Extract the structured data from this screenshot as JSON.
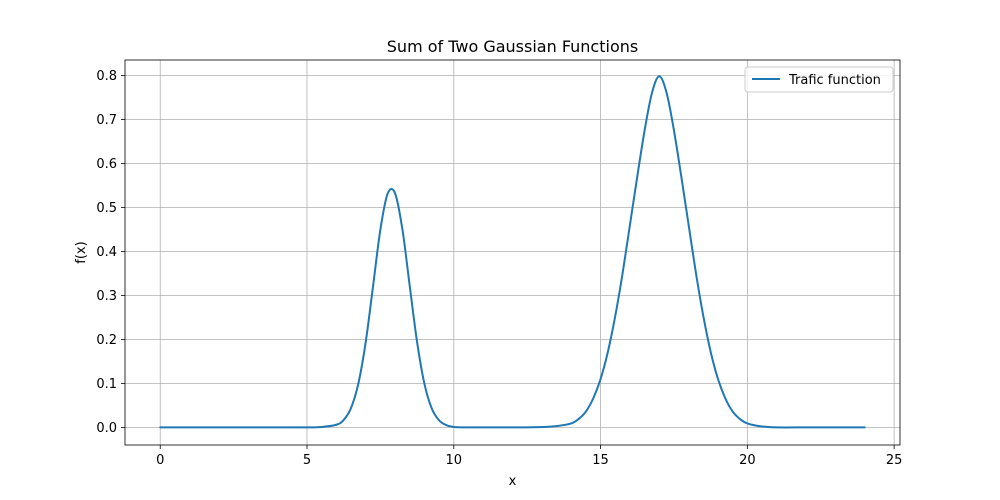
{
  "chart_data": {
    "type": "line",
    "title": "Sum of Two Gaussian Functions",
    "xlabel": "x",
    "ylabel": "f(x)",
    "xlim": [
      -1.2,
      25.2
    ],
    "ylim": [
      -0.04,
      0.835
    ],
    "xticks": [
      0,
      5,
      10,
      15,
      20,
      25
    ],
    "xtick_labels": [
      "0",
      "5",
      "10",
      "15",
      "20",
      "25"
    ],
    "yticks": [
      0.0,
      0.1,
      0.2,
      0.3,
      0.4,
      0.5,
      0.6,
      0.7,
      0.8
    ],
    "ytick_labels": [
      "0.0",
      "0.1",
      "0.2",
      "0.3",
      "0.4",
      "0.5",
      "0.6",
      "0.7",
      "0.8"
    ],
    "grid": true,
    "legend_position": "top-right",
    "series": [
      {
        "name": "Trafic function",
        "color": "#1f77b4",
        "x": [
          0,
          1,
          2,
          3,
          4,
          5,
          5.5,
          6,
          6.25,
          6.5,
          6.75,
          7,
          7.25,
          7.5,
          7.75,
          8,
          8.25,
          8.5,
          8.75,
          9,
          9.25,
          9.5,
          9.75,
          10,
          10.5,
          11,
          12,
          13,
          13.5,
          14,
          14.25,
          14.5,
          14.75,
          15,
          15.25,
          15.5,
          15.75,
          16,
          16.25,
          16.5,
          16.75,
          17,
          17.25,
          17.5,
          17.75,
          18,
          18.25,
          18.5,
          18.75,
          19,
          19.25,
          19.5,
          19.75,
          20,
          20.5,
          21,
          22,
          23,
          24
        ],
        "y": [
          0.0,
          0.0,
          0.0,
          0.0,
          0.0,
          0.0,
          0.001,
          0.006,
          0.017,
          0.044,
          0.1,
          0.194,
          0.321,
          0.45,
          0.532,
          0.532,
          0.45,
          0.321,
          0.194,
          0.099,
          0.043,
          0.016,
          0.005,
          0.001,
          0.0,
          0.0,
          0.0,
          0.001,
          0.003,
          0.009,
          0.019,
          0.036,
          0.066,
          0.11,
          0.172,
          0.253,
          0.35,
          0.46,
          0.57,
          0.675,
          0.76,
          0.798,
          0.76,
          0.675,
          0.57,
          0.46,
          0.35,
          0.253,
          0.172,
          0.11,
          0.066,
          0.036,
          0.019,
          0.009,
          0.002,
          0.0,
          0.0,
          0.0,
          0.0
        ]
      }
    ]
  }
}
